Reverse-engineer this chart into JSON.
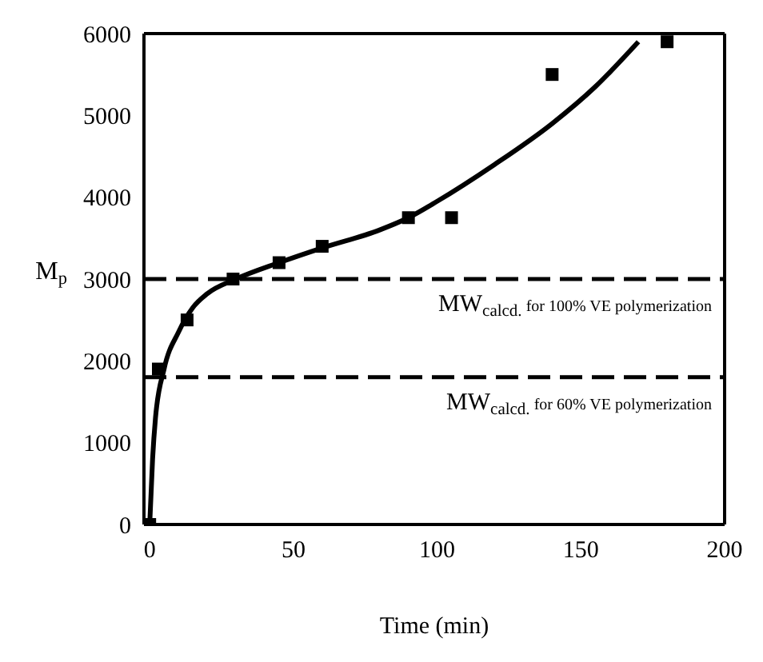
{
  "chart_data": {
    "type": "scatter",
    "xlabel": "Time (min)",
    "ylabel": "M$_{p}$",
    "xlim": [
      -2,
      200
    ],
    "ylim": [
      0,
      6000
    ],
    "xticks": [
      0,
      50,
      100,
      150,
      200
    ],
    "yticks": [
      0,
      1000,
      2000,
      3000,
      4000,
      5000,
      6000
    ],
    "marker": "square",
    "series": [
      {
        "color": "#000000",
        "x": [
          0,
          3,
          13,
          29,
          45,
          60,
          90,
          105,
          140,
          180
        ],
        "values": [
          0,
          1900,
          2500,
          3000,
          3200,
          3400,
          3750,
          3750,
          5500,
          5900
        ]
      },
      {
        "type": "line",
        "color": "#000000",
        "marker": "none",
        "line_style": "solid",
        "x": [
          0,
          1,
          2,
          5,
          10,
          15,
          20,
          30,
          45,
          60,
          80,
          90,
          100,
          120,
          140,
          155,
          170
        ],
        "values": [
          0,
          800,
          1300,
          1900,
          2350,
          2650,
          2820,
          3000,
          3200,
          3380,
          3600,
          3750,
          3950,
          4400,
          4900,
          5350,
          5900
        ]
      }
    ],
    "ref_lines": [
      {
        "axis": "y",
        "value": 3000,
        "label": "MW$_{calcd.}$ for 100% VE polymerization",
        "line_style": "dashed",
        "color": "#000000"
      },
      {
        "axis": "y",
        "value": 1800,
        "label": "MW$_{calcd.}$ for 60% VE polymerization",
        "line_style": "dashed",
        "color": "#000000"
      }
    ]
  }
}
